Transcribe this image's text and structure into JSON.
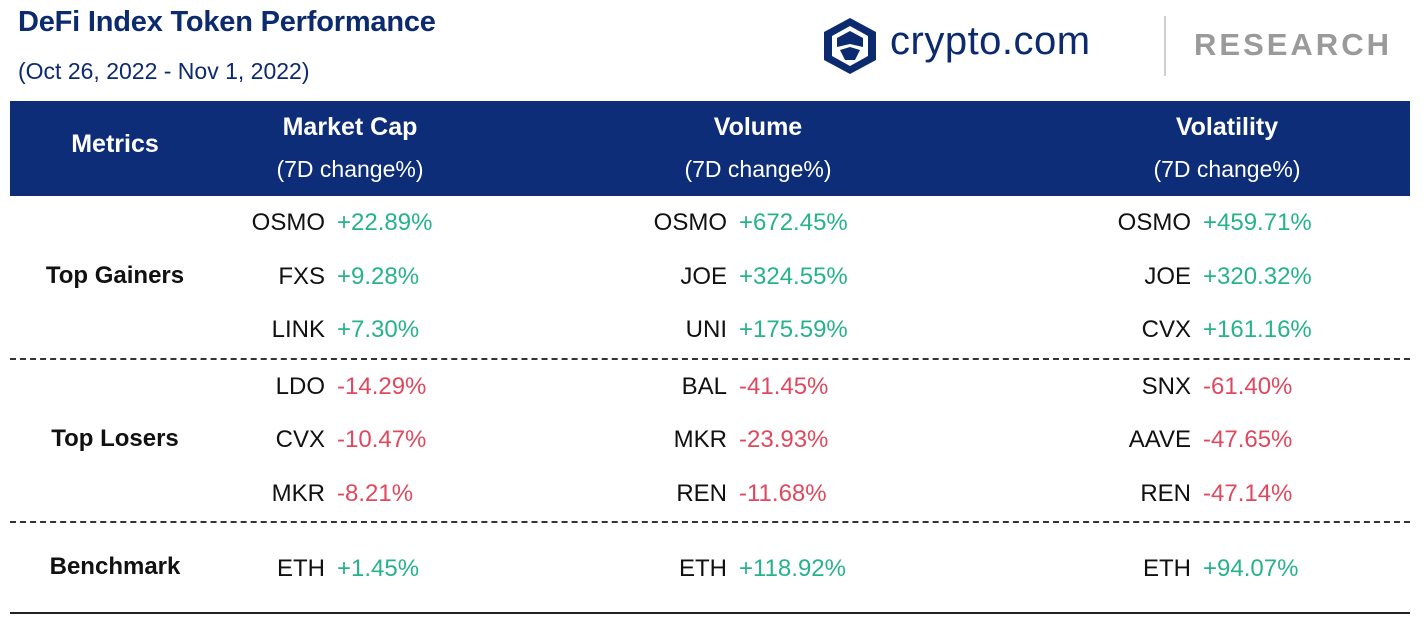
{
  "header": {
    "title": "DeFi Index Token Performance",
    "subtitle": "(Oct 26, 2022 - Nov 1, 2022)",
    "brand_name": "crypto.com",
    "brand_suffix": "RESEARCH"
  },
  "colors": {
    "navy": "#0d2d78",
    "title": "#0c2a6e",
    "positive": "#27b38a",
    "negative": "#e0485e"
  },
  "chart_data": {
    "type": "table",
    "row_header_label": "Metrics",
    "columns": [
      {
        "name": "Market Cap",
        "sub": "(7D change%)"
      },
      {
        "name": "Volume",
        "sub": "(7D change%)"
      },
      {
        "name": "Volatility",
        "sub": "(7D change%)"
      }
    ],
    "groups": [
      {
        "label": "Top Gainers",
        "rows": [
          [
            {
              "token": "OSMO",
              "value": "+22.89%"
            },
            {
              "token": "OSMO",
              "value": "+672.45%"
            },
            {
              "token": "OSMO",
              "value": "+459.71%"
            }
          ],
          [
            {
              "token": "FXS",
              "value": "+9.28%"
            },
            {
              "token": "JOE",
              "value": "+324.55%"
            },
            {
              "token": "JOE",
              "value": "+320.32%"
            }
          ],
          [
            {
              "token": "LINK",
              "value": "+7.30%"
            },
            {
              "token": "UNI",
              "value": "+175.59%"
            },
            {
              "token": "CVX",
              "value": "+161.16%"
            }
          ]
        ]
      },
      {
        "label": "Top Losers",
        "rows": [
          [
            {
              "token": "LDO",
              "value": "-14.29%"
            },
            {
              "token": "BAL",
              "value": "-41.45%"
            },
            {
              "token": "SNX",
              "value": "-61.40%"
            }
          ],
          [
            {
              "token": "CVX",
              "value": "-10.47%"
            },
            {
              "token": "MKR",
              "value": "-23.93%"
            },
            {
              "token": "AAVE",
              "value": "-47.65%"
            }
          ],
          [
            {
              "token": "MKR",
              "value": "-8.21%"
            },
            {
              "token": "REN",
              "value": "-11.68%"
            },
            {
              "token": "REN",
              "value": "-47.14%"
            }
          ]
        ]
      },
      {
        "label": "Benchmark",
        "rows": [
          [
            {
              "token": "ETH",
              "value": "+1.45%"
            },
            {
              "token": "ETH",
              "value": "+118.92%"
            },
            {
              "token": "ETH",
              "value": "+94.07%"
            }
          ]
        ]
      }
    ]
  }
}
